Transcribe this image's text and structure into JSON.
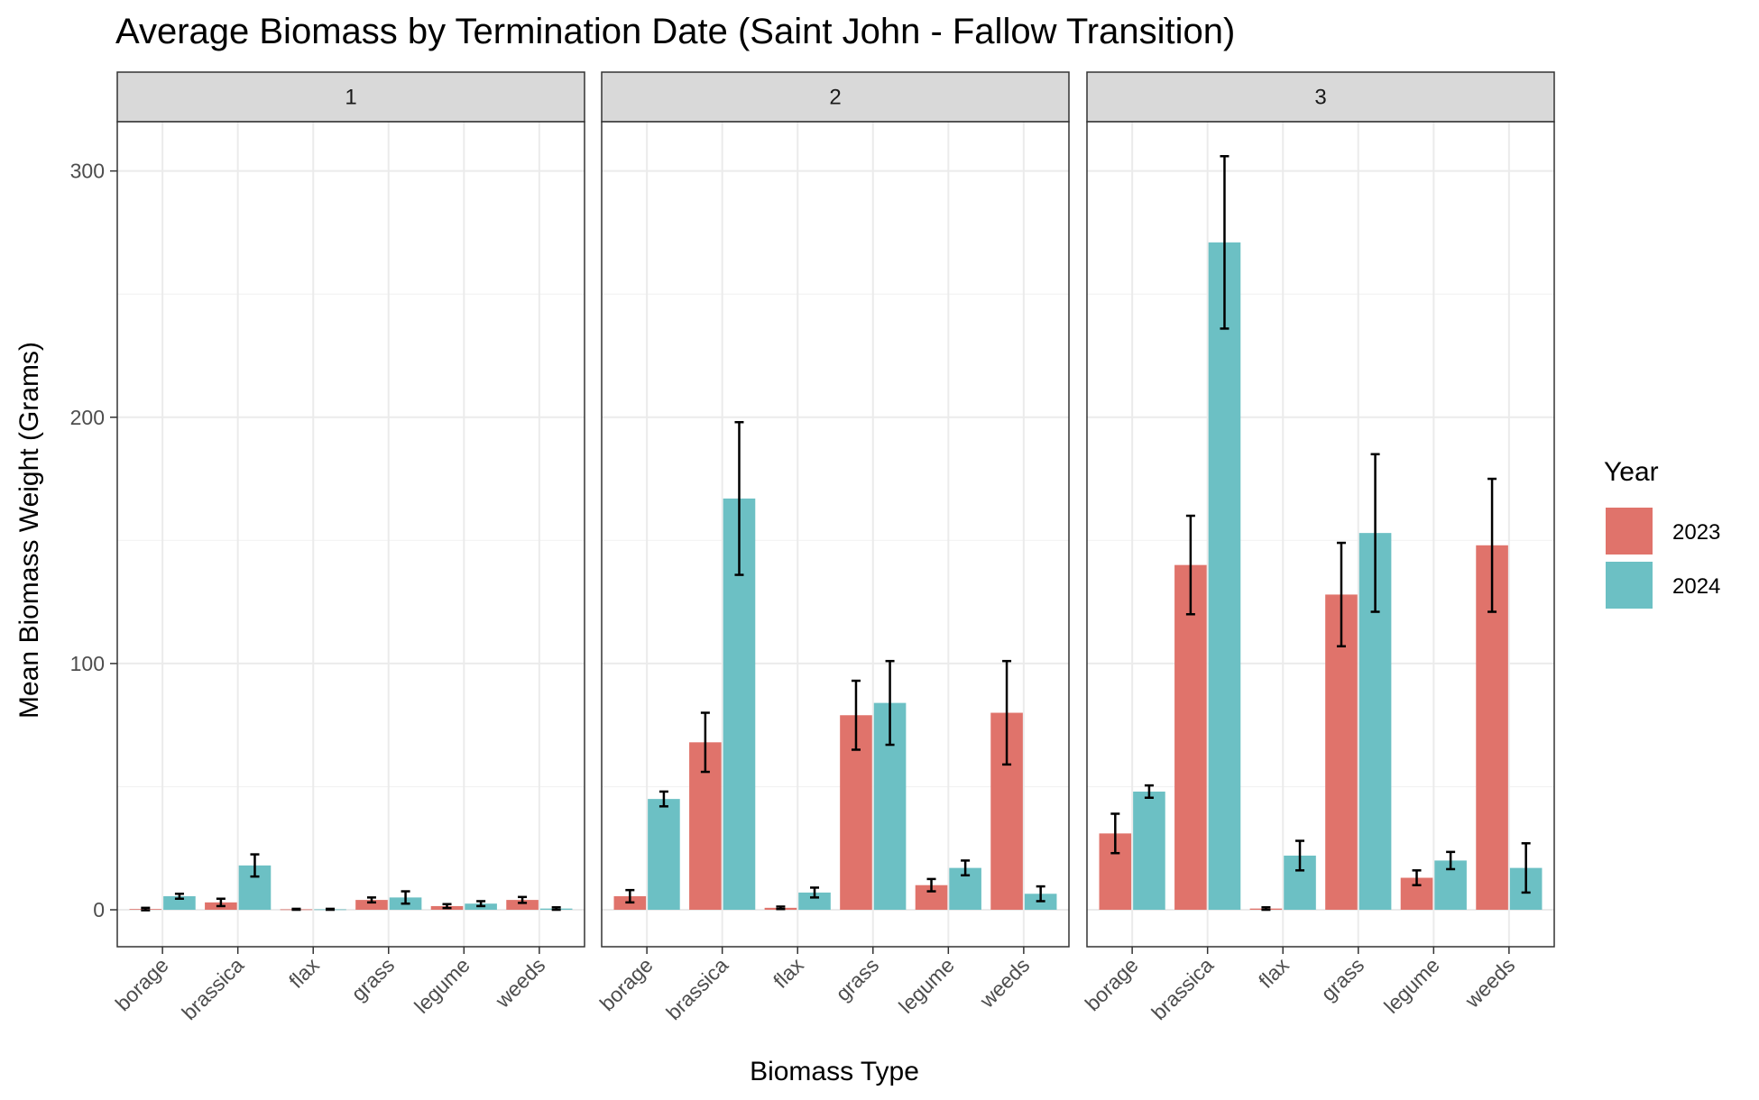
{
  "chart_data": {
    "type": "bar",
    "title": "Average Biomass by Termination Date (Saint John - Fallow Transition)",
    "xlabel": "Biomass Type",
    "ylabel": "Mean Biomass Weight (Grams)",
    "ylim": [
      -15,
      320
    ],
    "yticks": [
      0,
      100,
      200,
      300
    ],
    "ytick_labels": [
      "0",
      "100",
      "200",
      "300"
    ],
    "grid": true,
    "legend": {
      "title": "Year",
      "position": "right",
      "entries": [
        "2023",
        "2024"
      ]
    },
    "colors": {
      "2023": "#e0736b",
      "2024": "#6cc0c4"
    },
    "categories": [
      "borage",
      "brassica",
      "flax",
      "grass",
      "legume",
      "weeds"
    ],
    "facets": [
      {
        "label": "1",
        "series": [
          {
            "name": "2023",
            "values": [
              0.3,
              3,
              0.2,
              4,
              1.5,
              4
            ],
            "errors": [
              0.5,
              1.5,
              0.2,
              1,
              0.8,
              1.2
            ]
          },
          {
            "name": "2024",
            "values": [
              5.5,
              18,
              0.2,
              5,
              2.5,
              0.5
            ],
            "errors": [
              1,
              4.5,
              0.2,
              2.5,
              1,
              0.5
            ]
          }
        ]
      },
      {
        "label": "2",
        "series": [
          {
            "name": "2023",
            "values": [
              5.5,
              68,
              0.8,
              79,
              10,
              80
            ],
            "errors": [
              2.5,
              12,
              0.5,
              14,
              2.5,
              21
            ]
          },
          {
            "name": "2024",
            "values": [
              45,
              167,
              7,
              84,
              17,
              6.5
            ],
            "errors": [
              3,
              31,
              2,
              17,
              3,
              3
            ]
          }
        ]
      },
      {
        "label": "3",
        "series": [
          {
            "name": "2023",
            "values": [
              31,
              140,
              0.5,
              128,
              13,
              148
            ],
            "errors": [
              8,
              20,
              0.5,
              21,
              3,
              27
            ]
          },
          {
            "name": "2024",
            "values": [
              48,
              271,
              22,
              153,
              20,
              17
            ],
            "errors": [
              2.5,
              35,
              6,
              32,
              3.5,
              10
            ]
          }
        ]
      }
    ]
  }
}
